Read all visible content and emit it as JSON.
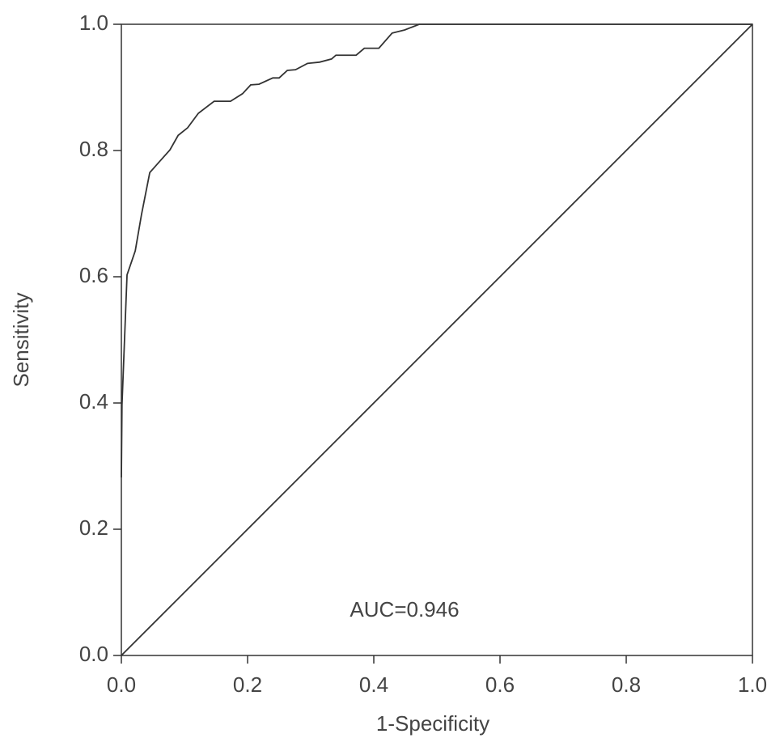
{
  "chart_data": {
    "type": "line",
    "xlabel": "1-Specificity",
    "ylabel": "Sensitivity",
    "annotation": "AUC=0.946",
    "xlim": [
      0,
      1
    ],
    "ylim": [
      0,
      1
    ],
    "xticks": [
      {
        "value": 0,
        "label": "0.0"
      },
      0.2,
      0.4,
      0.6,
      0.8,
      {
        "value": 1,
        "label": "1.0"
      }
    ],
    "yticks": [
      {
        "value": 0,
        "label": "0.0"
      },
      0.2,
      0.4,
      0.6,
      0.8,
      {
        "value": 1,
        "label": "1.0"
      }
    ],
    "series": [
      {
        "color": "#333333",
        "x": [
          0,
          0.001,
          0.009,
          0.022,
          0.032,
          0.045,
          0.06,
          0.077,
          0.09,
          0.105,
          0.122,
          0.147,
          0.173,
          0.192,
          0.205,
          0.218,
          0.24,
          0.25,
          0.263,
          0.276,
          0.295,
          0.314,
          0.333,
          0.34,
          0.372,
          0.385,
          0.408,
          0.429,
          0.449,
          0.472,
          1
        ],
        "values": [
          0.282,
          0.397,
          0.603,
          0.641,
          0.699,
          0.765,
          0.782,
          0.801,
          0.824,
          0.836,
          0.859,
          0.878,
          0.878,
          0.89,
          0.904,
          0.905,
          0.915,
          0.915,
          0.927,
          0.928,
          0.938,
          0.94,
          0.945,
          0.951,
          0.951,
          0.962,
          0.962,
          0.986,
          0.991,
          1,
          1
        ]
      },
      {
        "color": "#333333",
        "x": [
          0,
          1
        ],
        "values": [
          0,
          1
        ]
      }
    ]
  }
}
